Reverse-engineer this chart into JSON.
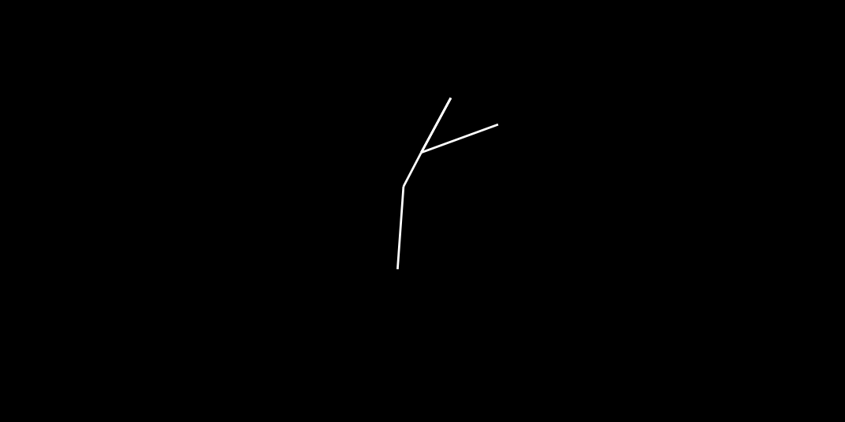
{
  "bg": "#000000",
  "white": "#ffffff",
  "blue": "#0000ff",
  "red": "#ff0000",
  "green": "#00aa00",
  "lw": 2.0,
  "figsize": [
    10.72,
    5.36
  ],
  "dpi": 100
}
